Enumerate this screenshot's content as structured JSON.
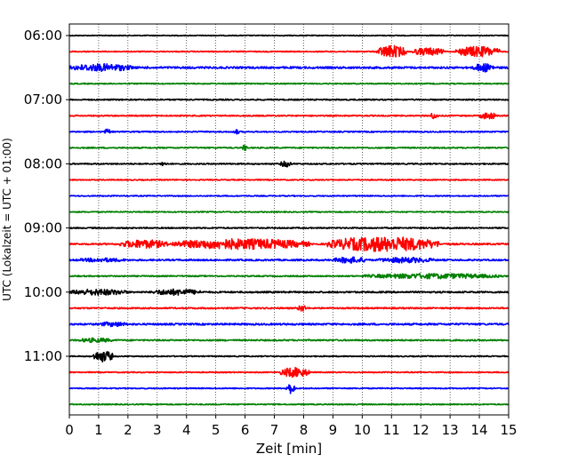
{
  "chart_data": {
    "type": "line",
    "title": "",
    "xlabel": "Zeit  [min]",
    "ylabel": "UTC (Lokalzeit = UTC + 01:00)",
    "xlim": [
      0,
      15
    ],
    "x_ticks": [
      "0",
      "1",
      "2",
      "3",
      "4",
      "5",
      "6",
      "7",
      "8",
      "9",
      "10",
      "11",
      "12",
      "13",
      "14",
      "15"
    ],
    "y_ticks": [
      {
        "label": "06:00",
        "row": 0
      },
      {
        "label": "07:00",
        "row": 4
      },
      {
        "label": "08:00",
        "row": 8
      },
      {
        "label": "09:00",
        "row": 12
      },
      {
        "label": "10:00",
        "row": 16
      },
      {
        "label": "11:00",
        "row": 20
      }
    ],
    "vertical_grid": "dotted",
    "traces_per_hour": 4,
    "trace_minutes": 15,
    "color_cycle": [
      "#000000",
      "#ff0000",
      "#0000ff",
      "#008000"
    ],
    "traces": [
      {
        "start": "06:00",
        "base": 0.25,
        "bursts": []
      },
      {
        "start": "06:15",
        "base": 0.3,
        "bursts": [
          [
            10.5,
            11.5,
            3.5
          ],
          [
            11.7,
            12.8,
            2.2
          ],
          [
            13.2,
            14.7,
            3.0
          ]
        ]
      },
      {
        "start": "06:30",
        "base": 0.55,
        "bursts": [
          [
            0,
            2.2,
            2.2
          ],
          [
            13.8,
            14.5,
            2.5
          ]
        ]
      },
      {
        "start": "06:45",
        "base": 0.3,
        "bursts": []
      },
      {
        "start": "07:00",
        "base": 0.35,
        "bursts": []
      },
      {
        "start": "07:15",
        "base": 0.35,
        "bursts": [
          [
            12.3,
            12.6,
            1.8
          ],
          [
            14.0,
            14.6,
            2.0
          ]
        ]
      },
      {
        "start": "07:30",
        "base": 0.35,
        "bursts": [
          [
            1.2,
            1.4,
            1.6
          ],
          [
            5.6,
            5.8,
            1.5
          ]
        ]
      },
      {
        "start": "07:45",
        "base": 0.35,
        "bursts": [
          [
            5.9,
            6.1,
            1.8
          ]
        ]
      },
      {
        "start": "08:00",
        "base": 0.35,
        "bursts": [
          [
            3.1,
            3.3,
            1.6
          ],
          [
            7.2,
            7.6,
            1.8
          ]
        ]
      },
      {
        "start": "08:15",
        "base": 0.3,
        "bursts": []
      },
      {
        "start": "08:30",
        "base": 0.3,
        "bursts": []
      },
      {
        "start": "08:45",
        "base": 0.3,
        "bursts": []
      },
      {
        "start": "09:00",
        "base": 0.35,
        "bursts": []
      },
      {
        "start": "09:15",
        "base": 0.45,
        "bursts": [
          [
            1.7,
            3.4,
            2.4
          ],
          [
            3.5,
            8.2,
            3.0
          ],
          [
            8.8,
            12.6,
            4.2
          ]
        ]
      },
      {
        "start": "09:30",
        "base": 0.45,
        "bursts": [
          [
            0.2,
            2.0,
            1.2
          ],
          [
            9.0,
            10.2,
            1.8
          ],
          [
            10.5,
            12.5,
            1.6
          ]
        ]
      },
      {
        "start": "09:45",
        "base": 0.35,
        "bursts": [
          [
            10.0,
            14.8,
            1.5
          ]
        ]
      },
      {
        "start": "10:00",
        "base": 0.45,
        "bursts": [
          [
            0,
            2.0,
            1.8
          ],
          [
            2.8,
            4.5,
            1.8
          ]
        ]
      },
      {
        "start": "10:15",
        "base": 0.4,
        "bursts": [
          [
            7.8,
            8.1,
            2.0
          ]
        ]
      },
      {
        "start": "10:30",
        "base": 0.5,
        "bursts": [
          [
            1.0,
            2.0,
            1.4
          ]
        ]
      },
      {
        "start": "10:45",
        "base": 0.4,
        "bursts": [
          [
            0.3,
            1.5,
            1.3
          ]
        ]
      },
      {
        "start": "11:00",
        "base": 0.3,
        "bursts": [
          [
            0.8,
            1.5,
            3.2
          ]
        ]
      },
      {
        "start": "11:15",
        "base": 0.3,
        "bursts": [
          [
            7.2,
            8.2,
            2.8
          ]
        ]
      },
      {
        "start": "11:30",
        "base": 0.3,
        "bursts": [
          [
            7.4,
            7.7,
            3.0
          ]
        ]
      },
      {
        "start": "11:45",
        "base": 0.3,
        "bursts": []
      }
    ]
  }
}
